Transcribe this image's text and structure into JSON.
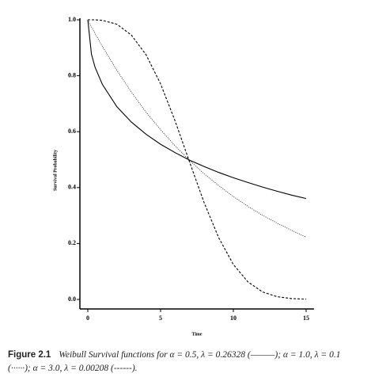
{
  "chart_data": {
    "type": "line",
    "x": [
      0,
      0.25,
      0.5,
      1,
      2,
      3,
      4,
      5,
      6,
      7,
      8,
      9,
      10,
      11,
      12,
      13,
      14,
      15
    ],
    "series": [
      {
        "color": "#000000",
        "style": "solid",
        "values": [
          1,
          0.877,
          0.83,
          0.769,
          0.689,
          0.634,
          0.591,
          0.555,
          0.525,
          0.498,
          0.475,
          0.454,
          0.435,
          0.418,
          0.402,
          0.387,
          0.373,
          0.361
        ]
      },
      {
        "color": "#000000",
        "style": "dotted",
        "values": [
          1,
          0.975,
          0.951,
          0.905,
          0.819,
          0.741,
          0.67,
          0.607,
          0.549,
          0.497,
          0.449,
          0.407,
          0.368,
          0.333,
          0.301,
          0.273,
          0.247,
          0.223
        ]
      },
      {
        "color": "#000000",
        "style": "dashed",
        "values": [
          1,
          1,
          1,
          0.998,
          0.984,
          0.945,
          0.875,
          0.771,
          0.638,
          0.49,
          0.345,
          0.22,
          0.125,
          0.063,
          0.027,
          0.01,
          0.003,
          0.001
        ]
      }
    ],
    "xlim": [
      0,
      15
    ],
    "xticks": [
      0,
      5,
      10,
      15
    ],
    "ylim": [
      0,
      1
    ],
    "yticks": [
      {
        "value": 0,
        "label": "0.0"
      },
      {
        "value": 0.2,
        "label": "0.2"
      },
      {
        "value": 0.4,
        "label": "0.4"
      },
      {
        "value": 0.6,
        "label": "0.6"
      },
      {
        "value": 0.8,
        "label": "0.8"
      },
      {
        "value": 1,
        "label": "1.0"
      }
    ],
    "xlabel": "Time",
    "ylabel": "Survival Probability"
  },
  "caption": {
    "label": "Figure 2.1",
    "text": "Weibull Survival functions for α = 0.5, λ = 0.26328 (———); α = 1.0, λ = 0.1 (······); α = 3.0, λ = 0.00208 (------)."
  }
}
